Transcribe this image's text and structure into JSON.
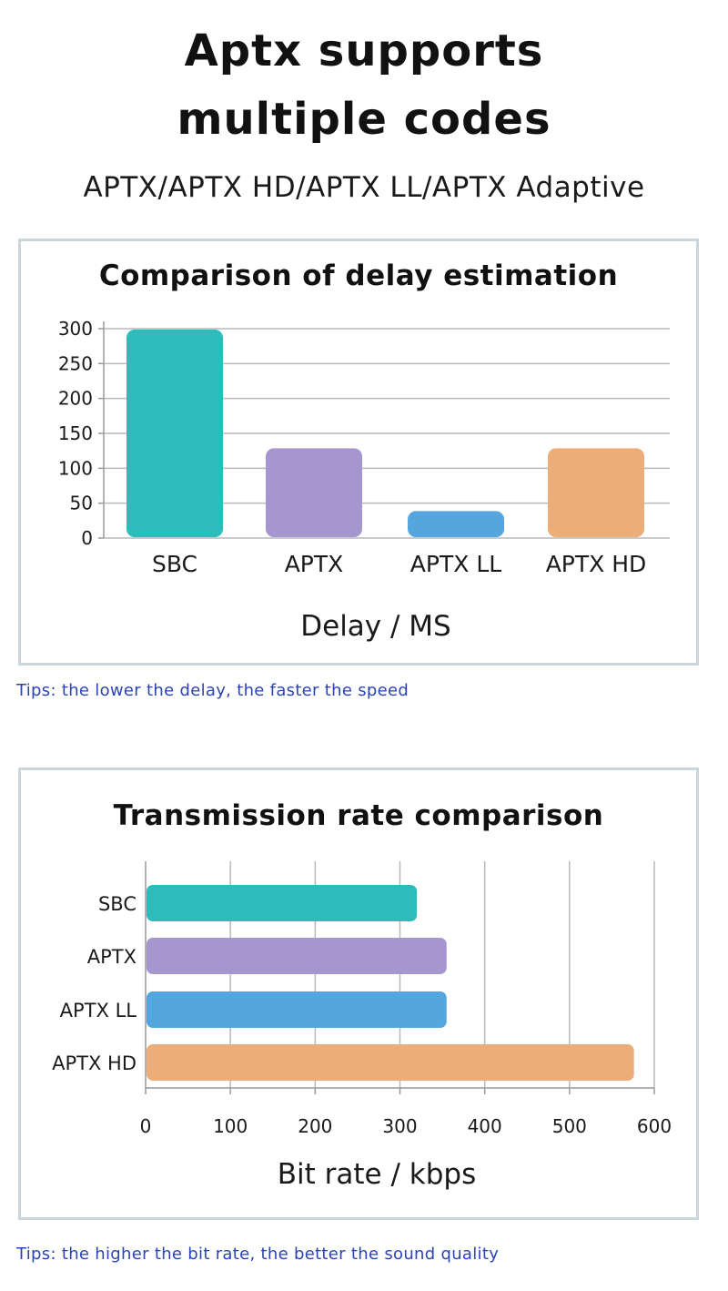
{
  "header": {
    "title_line1": "Aptx supports",
    "title_line2": "multiple codes",
    "subtitle": "APTX/APTX HD/APTX LL/APTX Adaptive"
  },
  "chart_data": [
    {
      "type": "bar",
      "title": "Comparison of delay estimation",
      "categories": [
        "SBC",
        "APTX",
        "APTX LL",
        "APTX HD"
      ],
      "values": [
        300,
        130,
        40,
        130
      ],
      "colors": [
        "#2cbcbc",
        "#a696cf",
        "#55a6df",
        "#edad79"
      ],
      "xlabel": "Delay / MS",
      "ylabel": "",
      "ylim": [
        0,
        300
      ],
      "yticks": [
        "0",
        "50",
        "100",
        "150",
        "200",
        "250",
        "300"
      ],
      "grid": true
    },
    {
      "type": "bar",
      "orientation": "horizontal",
      "title": "Transmission rate comparison",
      "categories": [
        "SBC",
        "APTX",
        "APTX LL",
        "APTX HD"
      ],
      "values": [
        320,
        355,
        355,
        576
      ],
      "colors": [
        "#2cbcbc",
        "#a696cf",
        "#55a6df",
        "#edad79"
      ],
      "xlabel": "Bit rate / kbps",
      "ylabel": "",
      "xlim": [
        0,
        600
      ],
      "xticks": [
        "0",
        "100",
        "200",
        "300",
        "400",
        "500",
        "600"
      ],
      "grid": true
    }
  ],
  "tips": {
    "delay": "Tips: the lower the delay, the faster the speed",
    "bitrate": "Tips: the higher the bit rate, the better the sound quality"
  }
}
